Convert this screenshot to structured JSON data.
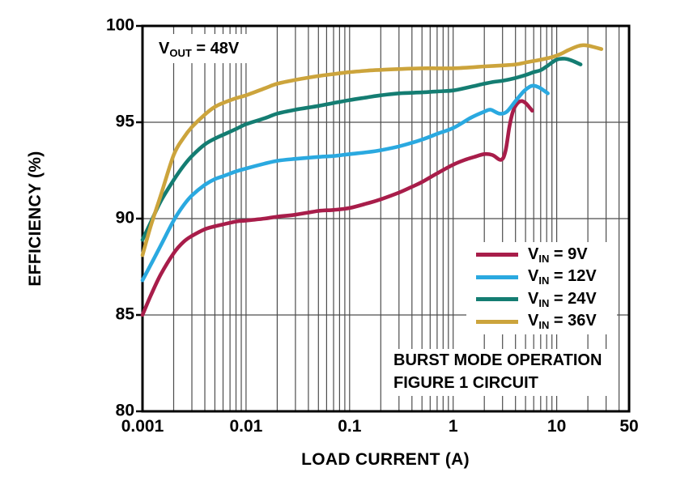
{
  "annotation": {
    "base": "V",
    "sub": "OUT",
    "rest": "= 48V"
  },
  "axes": {
    "y": {
      "label": "EFFICIENCY (%)",
      "ticks": [
        100,
        95,
        90,
        85,
        80
      ],
      "min": 80,
      "max": 100
    },
    "x": {
      "label": "LOAD CURRENT (A)",
      "scale": "log",
      "ticks": [
        0.001,
        0.01,
        0.1,
        1,
        10,
        50
      ],
      "tick_labels": [
        "0.001",
        "0.01",
        "0.1",
        "1",
        "10",
        "50"
      ],
      "min": 0.001,
      "max": 50
    }
  },
  "notes": [
    "BURST MODE OPERATION",
    "FIGURE 1 CIRCUIT"
  ],
  "legend": {
    "position": "inside-right",
    "items": [
      {
        "base": "V",
        "sub": "IN",
        "rest": "= 9V"
      },
      {
        "base": "V",
        "sub": "IN",
        "rest": "= 12V"
      },
      {
        "base": "V",
        "sub": "IN",
        "rest": "= 24V"
      },
      {
        "base": "V",
        "sub": "IN",
        "rest": "= 36V"
      }
    ]
  },
  "chart_data": {
    "type": "line",
    "xlabel": "LOAD CURRENT (A)",
    "ylabel": "EFFICIENCY (%)",
    "xscale": "log",
    "xlim": [
      0.001,
      50
    ],
    "ylim": [
      80,
      100
    ],
    "grid": true,
    "annotation_text": "VOUT = 48V",
    "series": [
      {
        "name": "VIN = 9V",
        "color": "#A81D4A",
        "points": [
          [
            0.001,
            85.0
          ],
          [
            0.0012,
            86.0
          ],
          [
            0.0015,
            87.1
          ],
          [
            0.002,
            88.2
          ],
          [
            0.0025,
            88.8
          ],
          [
            0.003,
            89.1
          ],
          [
            0.004,
            89.45
          ],
          [
            0.005,
            89.6
          ],
          [
            0.006,
            89.7
          ],
          [
            0.008,
            89.85
          ],
          [
            0.01,
            89.9
          ],
          [
            0.015,
            90.0
          ],
          [
            0.02,
            90.1
          ],
          [
            0.03,
            90.2
          ],
          [
            0.05,
            90.4
          ],
          [
            0.07,
            90.45
          ],
          [
            0.1,
            90.55
          ],
          [
            0.15,
            90.8
          ],
          [
            0.2,
            91.0
          ],
          [
            0.3,
            91.35
          ],
          [
            0.4,
            91.65
          ],
          [
            0.5,
            91.9
          ],
          [
            0.7,
            92.35
          ],
          [
            1.0,
            92.8
          ],
          [
            1.3,
            93.05
          ],
          [
            1.6,
            93.2
          ],
          [
            2.0,
            93.35
          ],
          [
            2.4,
            93.3
          ],
          [
            2.9,
            93.05
          ],
          [
            3.2,
            93.5
          ],
          [
            3.5,
            94.8
          ],
          [
            3.8,
            95.6
          ],
          [
            4.2,
            96.0
          ],
          [
            4.6,
            96.1
          ],
          [
            5.0,
            96.0
          ],
          [
            5.4,
            95.8
          ],
          [
            5.8,
            95.6
          ]
        ]
      },
      {
        "name": "VIN = 12V",
        "color": "#2AA9E0",
        "points": [
          [
            0.001,
            86.8
          ],
          [
            0.0012,
            87.6
          ],
          [
            0.0015,
            88.6
          ],
          [
            0.002,
            89.9
          ],
          [
            0.0025,
            90.7
          ],
          [
            0.003,
            91.2
          ],
          [
            0.004,
            91.75
          ],
          [
            0.005,
            92.05
          ],
          [
            0.006,
            92.2
          ],
          [
            0.008,
            92.45
          ],
          [
            0.01,
            92.6
          ],
          [
            0.015,
            92.85
          ],
          [
            0.02,
            93.0
          ],
          [
            0.03,
            93.1
          ],
          [
            0.05,
            93.2
          ],
          [
            0.07,
            93.25
          ],
          [
            0.1,
            93.35
          ],
          [
            0.15,
            93.45
          ],
          [
            0.2,
            93.55
          ],
          [
            0.3,
            93.75
          ],
          [
            0.5,
            94.1
          ],
          [
            0.7,
            94.4
          ],
          [
            1.0,
            94.7
          ],
          [
            1.5,
            95.25
          ],
          [
            2.0,
            95.55
          ],
          [
            2.3,
            95.65
          ],
          [
            2.8,
            95.45
          ],
          [
            3.3,
            95.55
          ],
          [
            4.0,
            96.1
          ],
          [
            4.8,
            96.6
          ],
          [
            5.5,
            96.85
          ],
          [
            6.0,
            96.9
          ],
          [
            6.8,
            96.8
          ],
          [
            7.5,
            96.65
          ],
          [
            8.2,
            96.5
          ]
        ]
      },
      {
        "name": "VIN = 24V",
        "color": "#147D72",
        "points": [
          [
            0.001,
            88.9
          ],
          [
            0.0012,
            89.8
          ],
          [
            0.0015,
            90.9
          ],
          [
            0.002,
            92.0
          ],
          [
            0.0025,
            92.75
          ],
          [
            0.003,
            93.25
          ],
          [
            0.004,
            93.85
          ],
          [
            0.005,
            94.15
          ],
          [
            0.006,
            94.35
          ],
          [
            0.008,
            94.65
          ],
          [
            0.01,
            94.9
          ],
          [
            0.015,
            95.2
          ],
          [
            0.02,
            95.45
          ],
          [
            0.03,
            95.65
          ],
          [
            0.05,
            95.85
          ],
          [
            0.07,
            96.0
          ],
          [
            0.1,
            96.15
          ],
          [
            0.15,
            96.3
          ],
          [
            0.2,
            96.4
          ],
          [
            0.3,
            96.5
          ],
          [
            0.5,
            96.55
          ],
          [
            0.7,
            96.6
          ],
          [
            1.0,
            96.65
          ],
          [
            1.5,
            96.85
          ],
          [
            2.0,
            97.0
          ],
          [
            2.5,
            97.1
          ],
          [
            3.0,
            97.15
          ],
          [
            4.0,
            97.3
          ],
          [
            5.0,
            97.45
          ],
          [
            6.0,
            97.6
          ],
          [
            7.0,
            97.7
          ],
          [
            8.0,
            97.9
          ],
          [
            10.0,
            98.25
          ],
          [
            12.0,
            98.3
          ],
          [
            14.0,
            98.2
          ],
          [
            17.0,
            98.0
          ]
        ]
      },
      {
        "name": "VIN = 36V",
        "color": "#CCA43C",
        "points": [
          [
            0.001,
            88.1
          ],
          [
            0.0012,
            89.6
          ],
          [
            0.0015,
            91.2
          ],
          [
            0.002,
            93.3
          ],
          [
            0.0025,
            94.2
          ],
          [
            0.003,
            94.75
          ],
          [
            0.004,
            95.4
          ],
          [
            0.005,
            95.8
          ],
          [
            0.006,
            96.0
          ],
          [
            0.008,
            96.25
          ],
          [
            0.01,
            96.4
          ],
          [
            0.015,
            96.75
          ],
          [
            0.02,
            97.0
          ],
          [
            0.03,
            97.2
          ],
          [
            0.05,
            97.4
          ],
          [
            0.07,
            97.5
          ],
          [
            0.1,
            97.6
          ],
          [
            0.15,
            97.68
          ],
          [
            0.2,
            97.72
          ],
          [
            0.3,
            97.76
          ],
          [
            0.5,
            97.8
          ],
          [
            0.7,
            97.8
          ],
          [
            1.0,
            97.8
          ],
          [
            1.5,
            97.85
          ],
          [
            2.0,
            97.9
          ],
          [
            3.0,
            97.95
          ],
          [
            4.0,
            98.0
          ],
          [
            5.0,
            98.1
          ],
          [
            7.0,
            98.25
          ],
          [
            9.0,
            98.38
          ],
          [
            11.0,
            98.55
          ],
          [
            13.0,
            98.75
          ],
          [
            16.0,
            98.95
          ],
          [
            18.0,
            99.0
          ],
          [
            20.0,
            98.98
          ],
          [
            23.0,
            98.9
          ],
          [
            27.0,
            98.8
          ]
        ]
      }
    ]
  }
}
